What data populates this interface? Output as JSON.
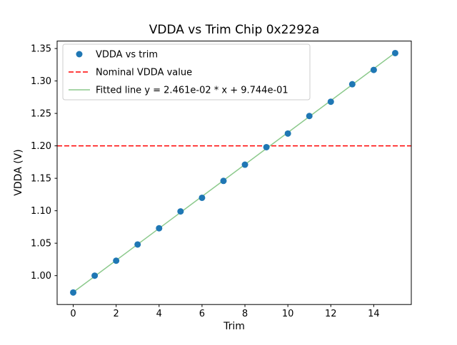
{
  "figure": {
    "background": "#ffffff"
  },
  "chart_data": {
    "type": "scatter",
    "title": "VDDA vs Trim Chip 0x2292a",
    "xlabel": "Trim",
    "ylabel": "VDDA (V)",
    "xlim": [
      -0.75,
      15.75
    ],
    "ylim": [
      0.9555,
      1.3615
    ],
    "xticks": [
      0,
      2,
      4,
      6,
      8,
      10,
      12,
      14
    ],
    "yticks": [
      1.0,
      1.05,
      1.1,
      1.15,
      1.2,
      1.25,
      1.3,
      1.35
    ],
    "grid": false,
    "x": [
      0,
      1,
      2,
      3,
      4,
      5,
      6,
      7,
      8,
      9,
      10,
      11,
      12,
      13,
      14,
      15
    ],
    "series": [
      {
        "name": "VDDA vs trim",
        "type": "scatter",
        "color": "#1f77b4",
        "values": [
          0.974,
          1.0,
          1.023,
          1.048,
          1.073,
          1.099,
          1.12,
          1.146,
          1.171,
          1.198,
          1.219,
          1.246,
          1.268,
          1.295,
          1.317,
          1.343
        ]
      },
      {
        "name": "Nominal VDDA value",
        "type": "hline",
        "color": "#ff0000",
        "linestyle": "dashed",
        "y": 1.2
      },
      {
        "name": "Fitted line y = 2.461e-02 * x + 9.744e-01",
        "type": "line",
        "color": "#8bc98b",
        "slope": 0.02461,
        "intercept": 0.9744
      }
    ],
    "legend": {
      "position": "upper-left",
      "border_color": "#cccccc",
      "background": "#ffffff"
    }
  }
}
